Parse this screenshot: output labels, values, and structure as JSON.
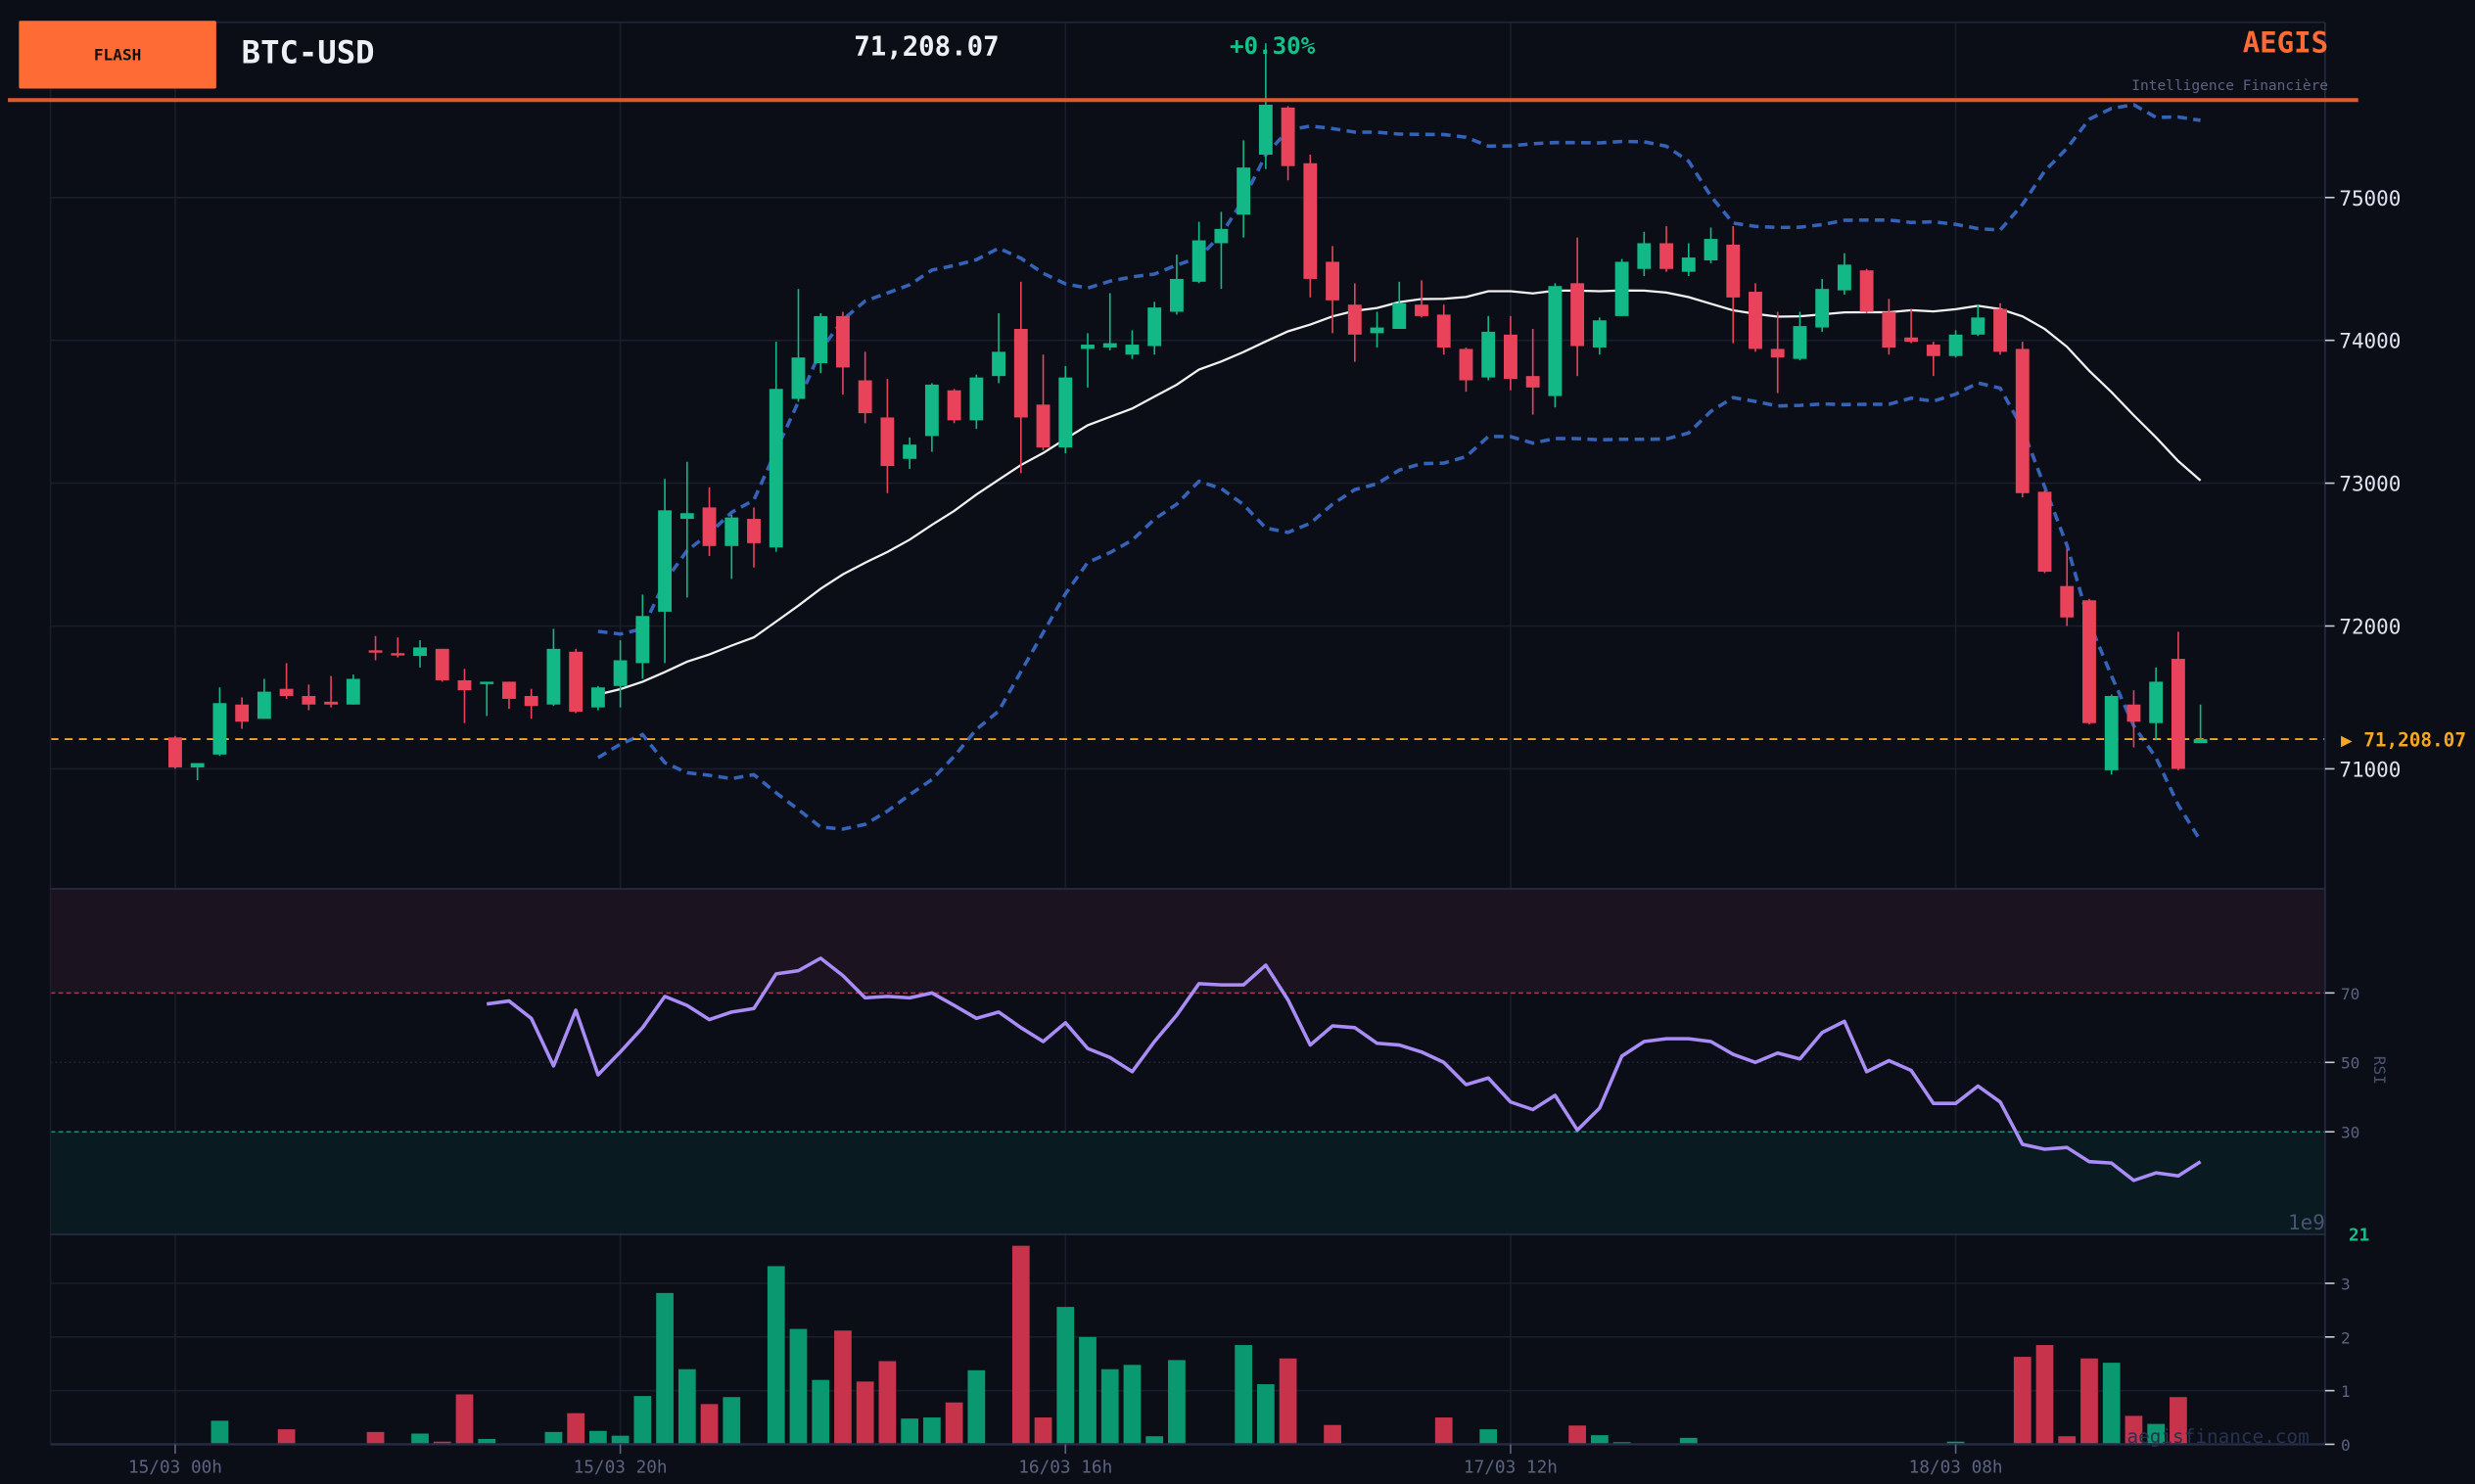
{
  "header": {
    "badge": "FLASH",
    "symbol": "BTC-USD",
    "price": "71,208.07",
    "change": "+0.30%",
    "brand": "AEGIS",
    "tagline": "Intelligence Financière",
    "watermark": "aegisfinance.com"
  },
  "colors": {
    "background": "#0b0e17",
    "up": "#12b886",
    "down": "#e8435a",
    "vol_up": "#0a9870",
    "vol_down": "#c7334b",
    "accent": "#ff6b35",
    "bollinger": "#3463b8",
    "sma": "#f2f2f2",
    "rsi": "#a98cf5",
    "last_price": "#f5a623"
  },
  "chart_data": [
    {
      "type": "candlestick",
      "title": "BTC-USD",
      "interval": "1h",
      "x_tick_labels": [
        "15/03 00h",
        "15/03 20h",
        "16/03 16h",
        "17/03 12h",
        "18/03 08h"
      ],
      "x_tick_index": [
        0,
        20,
        40,
        60,
        80
      ],
      "y_ticks": [
        71000,
        72000,
        73000,
        74000,
        75000
      ],
      "ylim": [
        70160,
        76230
      ],
      "last_price": 71208.07,
      "last_price_label": "▶ 71,208.07",
      "indicators": [
        "SMA 20",
        "Bollinger Bands (20, 2)"
      ],
      "open": [
        71220,
        71010,
        71100,
        71450,
        71350,
        71560,
        71510,
        71470,
        71450,
        71830,
        71810,
        71790,
        71840,
        71620,
        71600,
        71610,
        71510,
        71450,
        71820,
        71430,
        71580,
        71740,
        72100,
        72750,
        72830,
        72560,
        72750,
        72550,
        73590,
        73840,
        74170,
        73720,
        73460,
        73170,
        73330,
        73650,
        73440,
        73750,
        74080,
        73550,
        73250,
        73940,
        73950,
        73900,
        73960,
        74200,
        74410,
        74680,
        74880,
        75300,
        75630,
        75240,
        74550,
        74250,
        74050,
        74080,
        74250,
        74180,
        73940,
        73740,
        74040,
        73750,
        73610,
        74400,
        73950,
        74170,
        74500,
        74680,
        74480,
        74560,
        74670,
        74340,
        73940,
        73870,
        74090,
        74350,
        74490,
        74200,
        74020,
        73970,
        73890,
        74040,
        74220,
        73940,
        72940,
        72280,
        72180,
        70990,
        71450,
        71320,
        71770,
        71180
      ],
      "high": [
        71230,
        71040,
        71570,
        71500,
        71630,
        71740,
        71590,
        71650,
        71660,
        71930,
        71920,
        71900,
        71840,
        71700,
        71610,
        71610,
        71560,
        71980,
        71840,
        71580,
        71900,
        72220,
        73030,
        73150,
        72970,
        72780,
        72830,
        73990,
        74360,
        74190,
        74200,
        73920,
        73730,
        73320,
        73700,
        73660,
        73760,
        74190,
        74410,
        73900,
        73820,
        74050,
        74330,
        74070,
        74270,
        74600,
        74830,
        74900,
        75400,
        76080,
        75640,
        75300,
        74660,
        74400,
        74200,
        74410,
        74420,
        74250,
        73950,
        74170,
        74170,
        74080,
        74400,
        74720,
        74160,
        74570,
        74760,
        74800,
        74680,
        74790,
        74800,
        74400,
        74200,
        74200,
        74430,
        74610,
        74500,
        74290,
        74220,
        73990,
        74070,
        74250,
        74260,
        73990,
        72950,
        72540,
        72190,
        71520,
        71550,
        71710,
        71960,
        71450
      ],
      "low": [
        71000,
        70920,
        71090,
        71280,
        71350,
        71490,
        71410,
        71430,
        71450,
        71760,
        71780,
        71710,
        71610,
        71320,
        71370,
        71420,
        71350,
        71440,
        71390,
        71410,
        71430,
        71630,
        71740,
        72200,
        72490,
        72330,
        72410,
        72520,
        73570,
        73770,
        73620,
        73420,
        72930,
        73100,
        73220,
        73420,
        73380,
        73700,
        73070,
        73230,
        73210,
        73670,
        73930,
        73870,
        73900,
        74180,
        74400,
        74360,
        74720,
        75200,
        75120,
        74300,
        74050,
        73850,
        73950,
        74080,
        74160,
        73900,
        73640,
        73720,
        73650,
        73480,
        73530,
        73750,
        73900,
        74170,
        74450,
        74480,
        74450,
        74540,
        73980,
        73920,
        73630,
        73860,
        74060,
        74320,
        74190,
        73900,
        73980,
        73750,
        73880,
        74030,
        73900,
        72900,
        72370,
        72000,
        71310,
        70960,
        71150,
        71200,
        70990,
        71180
      ],
      "close": [
        71010,
        71040,
        71460,
        71330,
        71540,
        71510,
        71450,
        71450,
        71630,
        71820,
        71800,
        71850,
        71620,
        71550,
        71610,
        71490,
        71440,
        71840,
        71400,
        71570,
        71760,
        72070,
        72810,
        72790,
        72560,
        72760,
        72580,
        73660,
        73880,
        74170,
        73810,
        73490,
        73120,
        73270,
        73690,
        73440,
        73740,
        73920,
        73460,
        73250,
        73740,
        73970,
        73980,
        73970,
        74230,
        74430,
        74700,
        74780,
        75210,
        75650,
        75220,
        74430,
        74280,
        74040,
        74090,
        74260,
        74170,
        73950,
        73720,
        74060,
        73730,
        73670,
        74380,
        73960,
        74140,
        74550,
        74680,
        74500,
        74580,
        74710,
        74300,
        73940,
        73880,
        74100,
        74360,
        74530,
        74200,
        73950,
        73990,
        73890,
        74040,
        74160,
        73920,
        72930,
        72380,
        72060,
        71320,
        71510,
        71330,
        71610,
        71000,
        71208
      ]
    },
    {
      "type": "line",
      "title": "RSI",
      "ylabel": "RSI",
      "y_ticks": [
        30,
        50,
        70
      ],
      "ylim": [
        0,
        100
      ],
      "overbought": 70,
      "oversold": 30,
      "start_index": 14,
      "current_label": "21",
      "values": [
        66.8,
        67.7,
        62.7,
        49,
        65,
        46.4,
        53,
        60,
        69,
        66.4,
        62.3,
        64.5,
        65.5,
        75.5,
        76.4,
        80,
        75,
        68.6,
        69,
        68.6,
        70,
        66.4,
        62.7,
        64.5,
        60,
        56,
        61.4,
        54,
        51.4,
        47.3,
        56,
        63.6,
        72.7,
        72.3,
        72.3,
        78,
        68,
        55,
        60.5,
        60,
        55.5,
        55,
        53,
        50,
        43.6,
        45.5,
        38.6,
        36.4,
        40.5,
        30.5,
        36.8,
        51.8,
        56,
        56.8,
        56.8,
        56,
        52.3,
        50,
        52.7,
        51,
        58.6,
        61.8,
        47.3,
        50.5,
        47.7,
        38.2,
        38.2,
        43.2,
        38.6,
        26.4,
        25,
        25.5,
        21.4,
        21,
        16,
        18.2,
        17.3,
        21.4
      ]
    },
    {
      "type": "bar",
      "title": "Volume",
      "scale_label": "1e9",
      "y_ticks": [
        0,
        1,
        2,
        3
      ],
      "ylim": [
        0,
        3.9
      ],
      "values": [
        0,
        0,
        0.44,
        0,
        0,
        0.28,
        0,
        0,
        0,
        0.23,
        0,
        0.2,
        0.05,
        0.93,
        0.1,
        0,
        0,
        0.23,
        0.58,
        0.25,
        0.16,
        0.9,
        2.82,
        1.4,
        0.75,
        0.88,
        0,
        3.32,
        2.15,
        1.2,
        2.12,
        1.17,
        1.55,
        0.48,
        0.5,
        0.78,
        1.38,
        0,
        3.7,
        0.5,
        2.56,
        2.0,
        1.4,
        1.48,
        0.15,
        1.57,
        0,
        0,
        1.85,
        1.12,
        1.6,
        0,
        0.36,
        0,
        0,
        0,
        0,
        0.5,
        0,
        0.28,
        0,
        0,
        0,
        0.35,
        0.17,
        0.04,
        0,
        0,
        0.12,
        0,
        0,
        0,
        0,
        0,
        0,
        0,
        0,
        0,
        0,
        0,
        0.05,
        0,
        0,
        1.63,
        1.85,
        0.15,
        1.6,
        1.52,
        0.53,
        0.38,
        0.88,
        0
      ]
    }
  ]
}
